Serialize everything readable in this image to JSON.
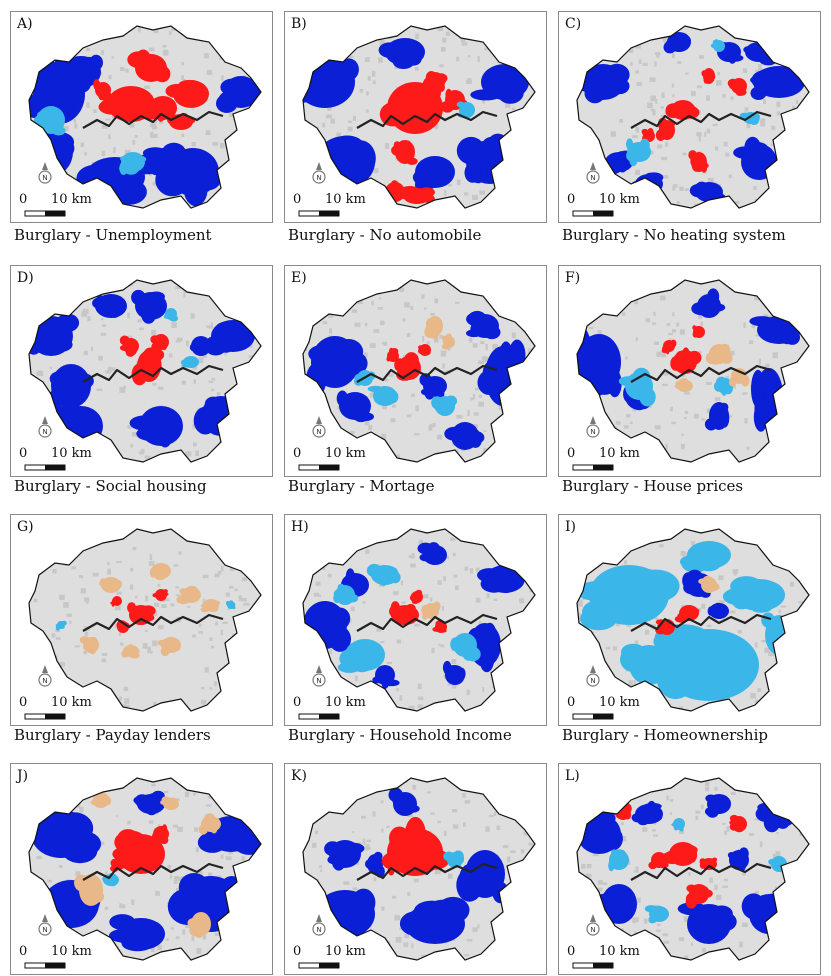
{
  "panels": [
    {
      "label": "A)",
      "caption": "Burglary - Unemployment",
      "pattern": "A"
    },
    {
      "label": "B)",
      "caption": "Burglary - No automobile",
      "pattern": "B"
    },
    {
      "label": "C)",
      "caption": "Burglary - No heating system",
      "pattern": "C"
    },
    {
      "label": "D)",
      "caption": "Burglary - Social housing",
      "pattern": "D"
    },
    {
      "label": "E)",
      "caption": "Burglary - Mortage",
      "pattern": "E"
    },
    {
      "label": "F)",
      "caption": "Burglary - House prices",
      "pattern": "F"
    },
    {
      "label": "G)",
      "caption": "Burglary - Payday lenders",
      "pattern": "G"
    },
    {
      "label": "H)",
      "caption": "Burglary - Household Income",
      "pattern": "H"
    },
    {
      "label": "I)",
      "caption": "Burglary - Homeownership",
      "pattern": "I"
    },
    {
      "label": "J)",
      "caption": "",
      "pattern": "J"
    },
    {
      "label": "K)",
      "caption": "",
      "pattern": "K"
    },
    {
      "label": "L)",
      "caption": "",
      "pattern": "L"
    }
  ],
  "scale_bar": {
    "zero": "0",
    "distance": "10 km"
  },
  "north_arrow": {
    "letter": "N"
  },
  "colors": {
    "high_high": "#ff1a1a",
    "low_low": "#0a1fd6",
    "low_high": "#3bb6e8",
    "high_low": "#e8b889",
    "not_significant": "#dedede",
    "boundary": "#111111",
    "river": "#222222"
  }
}
